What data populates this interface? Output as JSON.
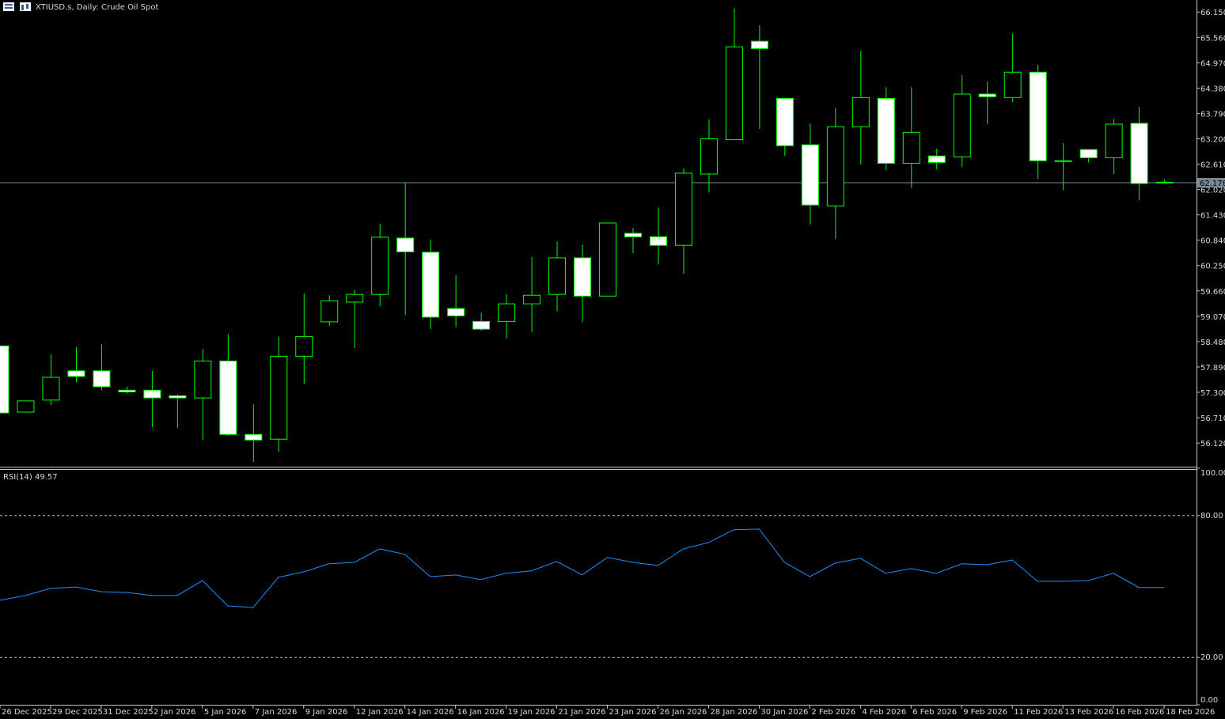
{
  "chart_data": [
    {
      "type": "candlestick",
      "title": "XTIUSD.s, Daily:  Crude Oil Spot",
      "categories": [
        "26 Dec 2025",
        null,
        "29 Dec 2025",
        null,
        "31 Dec 2025",
        null,
        "2 Jan 2026",
        null,
        "5 Jan 2026",
        null,
        "7 Jan 2026",
        null,
        "9 Jan 2026",
        null,
        "12 Jan 2026",
        null,
        "14 Jan 2026",
        null,
        "16 Jan 2026",
        null,
        "19 Jan 2026",
        null,
        "21 Jan 2026",
        null,
        "23 Jan 2026",
        null,
        "26 Jan 2026",
        null,
        "28 Jan 2026",
        null,
        "30 Jan 2026",
        null,
        "2 Feb 2026",
        null,
        "4 Feb 2026",
        null,
        "6 Feb 2026",
        null,
        "9 Feb 2026",
        null,
        "11 Feb 2026",
        null,
        "13 Feb 2026",
        null,
        "16 Feb 2026",
        null,
        "18 Feb 2026"
      ],
      "open": [
        58.38,
        56.84,
        57.12,
        57.8,
        57.8,
        57.35,
        57.35,
        57.22,
        57.17,
        58.03,
        56.32,
        56.21,
        58.14,
        58.94,
        59.4,
        59.58,
        60.89,
        60.56,
        59.25,
        58.95,
        58.95,
        59.36,
        59.58,
        60.43,
        59.54,
        61.0,
        60.92,
        60.72,
        62.38,
        63.18,
        65.47,
        64.14,
        63.06,
        61.64,
        63.48,
        64.14,
        62.63,
        62.8,
        62.78,
        64.24,
        64.16,
        64.75,
        62.69,
        62.95,
        62.76,
        63.56,
        62.19
      ],
      "high": [
        58.38,
        57.1,
        58.18,
        58.35,
        58.42,
        57.43,
        57.8,
        57.25,
        58.31,
        58.66,
        57.02,
        58.6,
        59.6,
        59.56,
        59.69,
        61.22,
        62.19,
        60.85,
        60.02,
        59.16,
        59.58,
        60.45,
        60.81,
        60.74,
        61.24,
        61.13,
        61.6,
        62.51,
        63.65,
        66.24,
        65.84,
        64.14,
        63.56,
        63.92,
        65.25,
        64.4,
        64.4,
        62.97,
        64.68,
        64.53,
        65.65,
        64.92,
        63.1,
        62.95,
        63.67,
        63.94,
        62.25
      ],
      "low": [
        56.82,
        56.84,
        57.0,
        57.54,
        57.35,
        57.28,
        56.49,
        56.47,
        56.19,
        56.29,
        55.68,
        55.92,
        57.5,
        58.84,
        58.33,
        59.3,
        59.1,
        58.77,
        58.82,
        58.73,
        58.55,
        58.7,
        59.19,
        58.94,
        59.54,
        60.54,
        60.28,
        60.06,
        61.95,
        63.17,
        63.43,
        62.8,
        61.2,
        60.87,
        62.6,
        62.47,
        62.06,
        62.49,
        62.54,
        63.54,
        64.05,
        62.27,
        62.0,
        62.65,
        62.38,
        61.77,
        62.16
      ],
      "close": [
        56.82,
        57.1,
        57.65,
        57.67,
        57.43,
        57.31,
        57.17,
        57.17,
        58.03,
        56.32,
        56.19,
        58.14,
        58.6,
        59.43,
        59.58,
        60.91,
        60.57,
        59.05,
        59.08,
        58.77,
        59.36,
        59.56,
        60.43,
        59.54,
        61.24,
        60.92,
        60.72,
        62.4,
        63.2,
        65.34,
        65.3,
        63.04,
        61.66,
        63.48,
        64.16,
        62.63,
        63.35,
        62.65,
        64.24,
        64.18,
        64.75,
        62.69,
        62.69,
        62.76,
        63.54,
        62.16,
        62.178
      ],
      "up_color": "#000000",
      "down_color": "#ffffff",
      "wick_color": "#00ff00",
      "current_price": 62.178,
      "price_line_color": "#778899",
      "ylim": [
        55.57,
        66.43
      ],
      "yticks": [
        {
          "value": 66.15,
          "label": "66.150"
        },
        {
          "value": 65.56,
          "label": "65.560"
        },
        {
          "value": 64.97,
          "label": "64.970"
        },
        {
          "value": 64.38,
          "label": "64.380"
        },
        {
          "value": 63.79,
          "label": "63.790"
        },
        {
          "value": 63.2,
          "label": "63.200"
        },
        {
          "value": 62.61,
          "label": "62.610"
        },
        {
          "value": 62.02,
          "label": "62.020"
        },
        {
          "value": 61.43,
          "label": "61.430"
        },
        {
          "value": 60.84,
          "label": "60.840"
        },
        {
          "value": 60.25,
          "label": "60.250"
        },
        {
          "value": 59.66,
          "label": "59.660"
        },
        {
          "value": 59.07,
          "label": "59.070"
        },
        {
          "value": 58.48,
          "label": "58.480"
        },
        {
          "value": 57.89,
          "label": "57.890"
        },
        {
          "value": 57.3,
          "label": "57.300"
        },
        {
          "value": 56.71,
          "label": "56.710"
        },
        {
          "value": 56.12,
          "label": "56.120"
        }
      ]
    },
    {
      "type": "line",
      "title": "RSI(14) 49.57",
      "color": "#1e90ff",
      "values": [
        44.2,
        46.2,
        49.2,
        49.8,
        47.8,
        47.5,
        46.2,
        46.2,
        52.5,
        41.8,
        41.1,
        53.9,
        56.2,
        59.6,
        60.2,
        65.9,
        63.6,
        54.2,
        54.9,
        52.9,
        55.6,
        56.6,
        60.6,
        54.9,
        62.3,
        60.2,
        58.9,
        65.9,
        68.6,
        74.0,
        74.3,
        60.2,
        54.2,
        59.9,
        61.9,
        55.6,
        57.6,
        55.6,
        59.6,
        59.2,
        61.2,
        52.2,
        52.2,
        52.5,
        55.6,
        49.6,
        49.57
      ],
      "levels": [
        80,
        20
      ],
      "ylim": [
        0,
        100
      ],
      "yticks": [
        {
          "value": 100,
          "label": "100.00"
        },
        {
          "value": 80,
          "label": "80.00"
        },
        {
          "value": 20,
          "label": "20.00"
        },
        {
          "value": 0,
          "label": "0.00"
        }
      ]
    }
  ]
}
